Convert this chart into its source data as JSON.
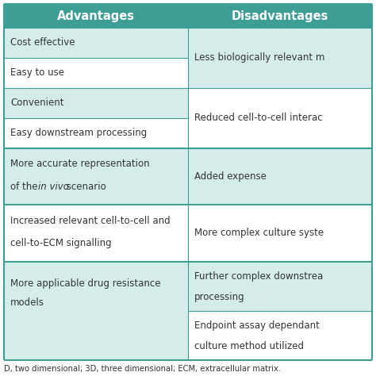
{
  "header_bg": "#3d9e96",
  "header_text_color": "#ffffff",
  "header_font_size": 10.5,
  "cell_bg_alt": "#d5edea",
  "cell_bg_white": "#ffffff",
  "cell_text_color": "#333333",
  "cell_font_size": 8.5,
  "border_color": "#3d9e96",
  "footer_text": "D, two dimensional; 3D, three dimensional; ECM, extracellular matrix.",
  "footer_font_size": 7.2,
  "col1_label": "Advantages",
  "col2_label": "Disadvantages"
}
